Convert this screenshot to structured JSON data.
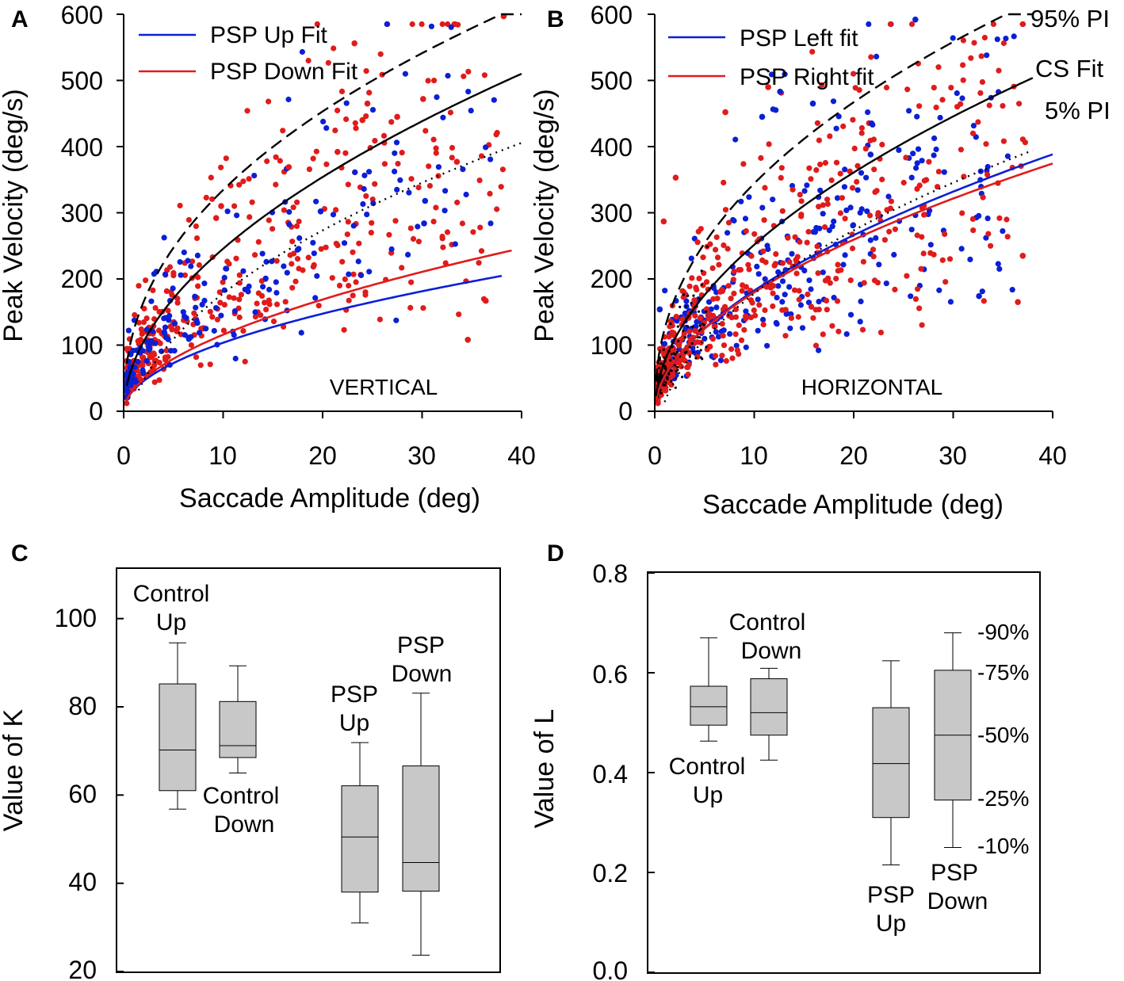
{
  "colors": {
    "blue": "#0b1fd6",
    "red": "#e01b1b",
    "black": "#000000",
    "box_fill": "#c8c8c8"
  },
  "chart_data": [
    {
      "panel": "A",
      "type": "scatter",
      "xlabel": "Saccade Amplitude (deg)",
      "ylabel": "Peak Velocity (deg/s)",
      "xlim": [
        0,
        40
      ],
      "ylim": [
        0,
        600
      ],
      "xticks": [
        "0",
        "10",
        "20",
        "30",
        "40"
      ],
      "yticks": [
        "0",
        "100",
        "200",
        "300",
        "400",
        "500",
        "600"
      ],
      "region_label": "VERTICAL",
      "legend": [
        {
          "name": "PSP Up Fit",
          "color": "blue"
        },
        {
          "name": "PSP Down Fit",
          "color": "red"
        }
      ],
      "fits": [
        {
          "name": "PSP Up Fit",
          "color": "blue",
          "style": "solid",
          "K": 32,
          "L": 0.51,
          "x_range": [
            0.1,
            38
          ]
        },
        {
          "name": "PSP Down Fit",
          "color": "red",
          "style": "solid",
          "K": 33,
          "L": 0.545,
          "x_range": [
            0.1,
            39
          ]
        },
        {
          "name": "CS Fit",
          "color": "black",
          "style": "solid",
          "K": 73,
          "L": 0.527,
          "x_range": [
            0.3,
            40
          ]
        },
        {
          "name": "95% PI",
          "color": "black",
          "style": "dashed",
          "K": 122,
          "L": 0.438,
          "x_range": [
            0.3,
            40
          ]
        },
        {
          "name": "5% PI",
          "color": "black",
          "style": "dotted",
          "offset": -70,
          "K": 84,
          "L": 0.47,
          "x_range": [
            1.5,
            40
          ]
        }
      ],
      "scatter_clusters": [
        {
          "color": "red",
          "n": 420,
          "xmax": 38,
          "spread": 0.36
        },
        {
          "color": "blue",
          "n": 200,
          "xmax": 37,
          "spread": 0.33
        }
      ],
      "highlights": [
        {
          "x": 38.2,
          "y": 597,
          "color": "red"
        },
        {
          "x": 23.2,
          "y": 556,
          "color": "red"
        },
        {
          "x": 24.5,
          "y": 465,
          "color": "red"
        },
        {
          "x": 30.1,
          "y": 472,
          "color": "red"
        },
        {
          "x": 24,
          "y": 440,
          "color": "red"
        },
        {
          "x": 27.5,
          "y": 445,
          "color": "red"
        },
        {
          "x": 21.5,
          "y": 392,
          "color": "red"
        },
        {
          "x": 33.5,
          "y": 377,
          "color": "red"
        },
        {
          "x": 16.6,
          "y": 369,
          "color": "red"
        },
        {
          "x": 9.8,
          "y": 310,
          "color": "red"
        },
        {
          "x": 9.3,
          "y": 292,
          "color": "red"
        },
        {
          "x": 30.3,
          "y": 318,
          "color": "blue"
        },
        {
          "x": 19.8,
          "y": 302,
          "color": "blue"
        },
        {
          "x": 30.2,
          "y": 284,
          "color": "blue"
        },
        {
          "x": 36.4,
          "y": 167,
          "color": "red"
        },
        {
          "x": 34.6,
          "y": 108,
          "color": "red"
        }
      ]
    },
    {
      "panel": "B",
      "type": "scatter",
      "xlabel": "Saccade Amplitude (deg)",
      "ylabel": "Peak Velocity (deg/s)",
      "xlim": [
        0,
        40
      ],
      "ylim": [
        0,
        600
      ],
      "xticks": [
        "0",
        "10",
        "20",
        "30",
        "40"
      ],
      "yticks": [
        "0",
        "100",
        "200",
        "300",
        "400",
        "500",
        "600"
      ],
      "region_label": "HORIZONTAL",
      "legend": [
        {
          "name": "PSP Left fit",
          "color": "blue"
        },
        {
          "name": "PSP Right fit",
          "color": "red"
        }
      ],
      "curve_labels": [
        "95% PI",
        "CS Fit",
        "5% PI"
      ],
      "fits": [
        {
          "name": "PSP Left fit",
          "color": "blue",
          "style": "solid",
          "K": 52,
          "L": 0.545,
          "x_range": [
            0.1,
            40
          ]
        },
        {
          "name": "PSP Right fit",
          "color": "red",
          "style": "solid",
          "K": 53,
          "L": 0.53,
          "x_range": [
            0.1,
            40
          ]
        },
        {
          "name": "CS Fit",
          "color": "black",
          "style": "solid",
          "K": 76,
          "L": 0.52,
          "x_range": [
            0.1,
            38
          ]
        },
        {
          "name": "95% PI",
          "color": "black",
          "style": "dashed",
          "K": 125,
          "L": 0.44,
          "x_range": [
            0.1,
            38
          ]
        },
        {
          "name": "5% PI",
          "color": "black",
          "style": "dotted",
          "offset": -70,
          "K": 84,
          "L": 0.47,
          "x_range": [
            1,
            38
          ]
        }
      ],
      "scatter_clusters": [
        {
          "color": "blue",
          "n": 330,
          "xmax": 36,
          "spread": 0.35
        },
        {
          "color": "red",
          "n": 520,
          "xmax": 37,
          "spread": 0.35
        },
        {
          "color": "black",
          "n": 140,
          "xmax": 5,
          "spread": 0.3
        }
      ],
      "highlights": [
        {
          "x": 26.2,
          "y": 592,
          "color": "blue"
        },
        {
          "x": 11.4,
          "y": 490,
          "color": "red"
        },
        {
          "x": 12.6,
          "y": 483,
          "color": "blue"
        },
        {
          "x": 15.9,
          "y": 465,
          "color": "blue"
        },
        {
          "x": 7.1,
          "y": 452,
          "color": "red"
        },
        {
          "x": 21.8,
          "y": 435,
          "color": "blue"
        },
        {
          "x": 10.8,
          "y": 445,
          "color": "blue"
        },
        {
          "x": 21.7,
          "y": 388,
          "color": "blue"
        },
        {
          "x": 2.1,
          "y": 353,
          "color": "red"
        },
        {
          "x": 37,
          "y": 235,
          "color": "red"
        },
        {
          "x": 36.5,
          "y": 165,
          "color": "red"
        },
        {
          "x": 32.6,
          "y": 174,
          "color": "blue"
        },
        {
          "x": 0.5,
          "y": 154,
          "color": "blue"
        },
        {
          "x": 0.9,
          "y": 287,
          "color": "red"
        }
      ]
    },
    {
      "panel": "C",
      "type": "box",
      "ylabel": "Value of K",
      "ylim": [
        20,
        110
      ],
      "yticks": [
        "20",
        "40",
        "60",
        "80",
        "100"
      ],
      "boxes": [
        {
          "label_lines": [
            "Control",
            "Up"
          ],
          "p10": 56.8,
          "p25": 61,
          "median": 70.2,
          "p75": 85.2,
          "p90": 94.5
        },
        {
          "label_lines": [
            "Control",
            "Down"
          ],
          "p10": 65,
          "p25": 68.5,
          "median": 71.2,
          "p75": 81.2,
          "p90": 89.3
        },
        {
          "label_lines": [
            "PSP",
            "Up"
          ],
          "p10": 31,
          "p25": 38,
          "median": 50.5,
          "p75": 62.1,
          "p90": 71.9
        },
        {
          "label_lines": [
            "PSP",
            "Down"
          ],
          "p10": 23.7,
          "p25": 38.2,
          "median": 44.7,
          "p75": 66.6,
          "p90": 83.1
        }
      ]
    },
    {
      "panel": "D",
      "type": "box",
      "ylabel": "Value of L",
      "ylim": [
        0,
        0.8
      ],
      "yticks": [
        "0.0",
        "0.2",
        "0.4",
        "0.6",
        "0.8"
      ],
      "boxes": [
        {
          "label_lines": [
            "Control",
            "Up"
          ],
          "p10": 0.463,
          "p25": 0.495,
          "median": 0.532,
          "p75": 0.573,
          "p90": 0.67
        },
        {
          "label_lines": [
            "Control",
            "Down"
          ],
          "p10": 0.425,
          "p25": 0.475,
          "median": 0.52,
          "p75": 0.588,
          "p90": 0.609
        },
        {
          "label_lines": [
            "PSP",
            "Up"
          ],
          "p10": 0.215,
          "p25": 0.31,
          "median": 0.418,
          "p75": 0.53,
          "p90": 0.624
        },
        {
          "label_lines": [
            "PSP",
            "Down"
          ],
          "p10": 0.25,
          "p25": 0.345,
          "median": 0.475,
          "p75": 0.605,
          "p90": 0.68
        }
      ],
      "percentile_labels": [
        "-90%",
        "-75%",
        "-50%",
        "-25%",
        "-10%"
      ]
    }
  ]
}
